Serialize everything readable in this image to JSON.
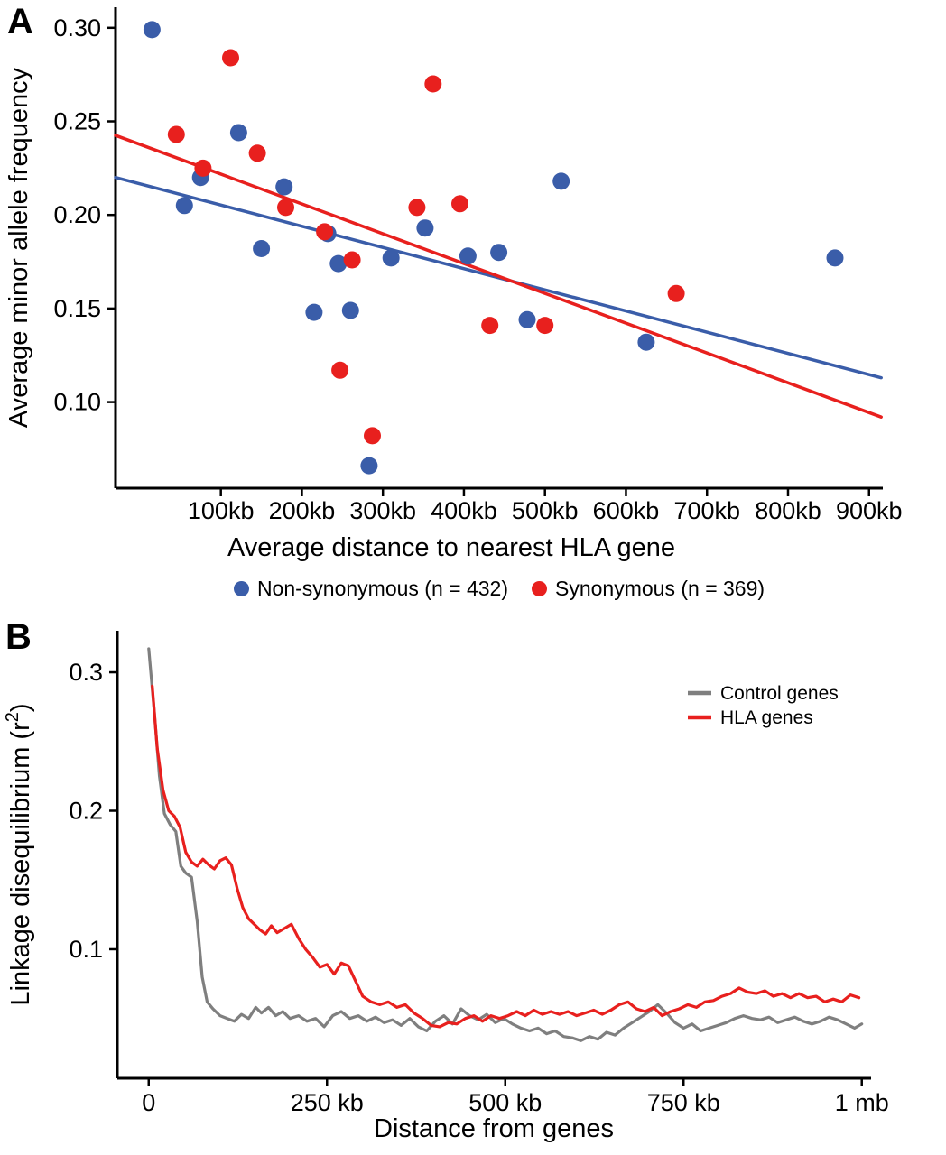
{
  "panels": {
    "a_label": "A",
    "b_label": "B"
  },
  "chart_data": [
    {
      "id": "panel-a",
      "type": "scatter",
      "title": "",
      "xlabel": "Average distance to nearest HLA gene",
      "ylabel": "Average minor allele frequency",
      "xlim": [
        -30,
        917
      ],
      "ylim": [
        0.054,
        0.311
      ],
      "grid": false,
      "x_ticks": [
        {
          "value": 100,
          "label": "100kb"
        },
        {
          "value": 200,
          "label": "200kb"
        },
        {
          "value": 300,
          "label": "300kb"
        },
        {
          "value": 400,
          "label": "400kb"
        },
        {
          "value": 500,
          "label": "500kb"
        },
        {
          "value": 600,
          "label": "600kb"
        },
        {
          "value": 700,
          "label": "700kb"
        },
        {
          "value": 800,
          "label": "800kb"
        },
        {
          "value": 900,
          "label": "900kb"
        }
      ],
      "y_ticks": [
        {
          "value": 0.1,
          "label": "0.10"
        },
        {
          "value": 0.15,
          "label": "0.15"
        },
        {
          "value": 0.2,
          "label": "0.20"
        },
        {
          "value": 0.25,
          "label": "0.25"
        },
        {
          "value": 0.3,
          "label": "0.30"
        }
      ],
      "series": [
        {
          "name": "Non-synonymous (n = 432)",
          "color": "#3A5DA9",
          "points": [
            [
              15,
              0.299
            ],
            [
              55,
              0.205
            ],
            [
              75,
              0.22
            ],
            [
              122,
              0.244
            ],
            [
              150,
              0.182
            ],
            [
              178,
              0.215
            ],
            [
              215,
              0.148
            ],
            [
              232,
              0.19
            ],
            [
              245,
              0.174
            ],
            [
              260,
              0.149
            ],
            [
              283,
              0.066
            ],
            [
              310,
              0.177
            ],
            [
              352,
              0.193
            ],
            [
              405,
              0.178
            ],
            [
              443,
              0.18
            ],
            [
              478,
              0.144
            ],
            [
              520,
              0.218
            ],
            [
              625,
              0.132
            ],
            [
              858,
              0.177
            ]
          ]
        },
        {
          "name": "Synonymous (n = 369)",
          "color": "#E8201E",
          "points": [
            [
              45,
              0.243
            ],
            [
              78,
              0.225
            ],
            [
              112,
              0.284
            ],
            [
              145,
              0.233
            ],
            [
              180,
              0.204
            ],
            [
              228,
              0.191
            ],
            [
              247,
              0.117
            ],
            [
              262,
              0.176
            ],
            [
              287,
              0.082
            ],
            [
              342,
              0.204
            ],
            [
              362,
              0.27
            ],
            [
              395,
              0.206
            ],
            [
              432,
              0.141
            ],
            [
              500,
              0.141
            ],
            [
              662,
              0.158
            ]
          ]
        }
      ],
      "trendlines": [
        {
          "name": "non-synonymous-fit",
          "color": "#3A5DA9",
          "x1": -30,
          "y1": 0.22,
          "x2": 915,
          "y2": 0.113
        },
        {
          "name": "synonymous-fit",
          "color": "#E8201E",
          "x1": -30,
          "y1": 0.2425,
          "x2": 915,
          "y2": 0.092
        }
      ],
      "legend": {
        "position": "bottom-center",
        "items": [
          {
            "label": "Non-synonymous (n = 432)",
            "color": "#3A5DA9"
          },
          {
            "label": "Synonymous (n = 369)",
            "color": "#E8201E"
          }
        ]
      }
    },
    {
      "id": "panel-b",
      "type": "line",
      "title": "",
      "xlabel": "Distance from genes",
      "ylabel_pre": "Linkage disequilibrium (r",
      "ylabel_sup": "2",
      "ylabel_post": ")",
      "xlim": [
        -44,
        1013
      ],
      "ylim": [
        0.0068,
        0.33
      ],
      "grid": false,
      "x_ticks": [
        {
          "value": 0,
          "label": "0"
        },
        {
          "value": 250,
          "label": "250 kb"
        },
        {
          "value": 500,
          "label": "500 kb"
        },
        {
          "value": 750,
          "label": "750 kb"
        },
        {
          "value": 1000,
          "label": "1 mb"
        }
      ],
      "y_ticks": [
        {
          "value": 0.1,
          "label": "0.1"
        },
        {
          "value": 0.2,
          "label": "0.2"
        },
        {
          "value": 0.3,
          "label": "0.3"
        }
      ],
      "series": [
        {
          "name": "Control genes",
          "color": "#7F7F7F",
          "points": [
            [
              0,
              0.317
            ],
            [
              8,
              0.27
            ],
            [
              15,
              0.225
            ],
            [
              22,
              0.198
            ],
            [
              30,
              0.19
            ],
            [
              38,
              0.185
            ],
            [
              45,
              0.16
            ],
            [
              52,
              0.155
            ],
            [
              60,
              0.152
            ],
            [
              68,
              0.12
            ],
            [
              75,
              0.08
            ],
            [
              82,
              0.062
            ],
            [
              90,
              0.057
            ],
            [
              100,
              0.052
            ],
            [
              110,
              0.05
            ],
            [
              120,
              0.048
            ],
            [
              130,
              0.053
            ],
            [
              140,
              0.05
            ],
            [
              150,
              0.058
            ],
            [
              158,
              0.054
            ],
            [
              168,
              0.058
            ],
            [
              178,
              0.052
            ],
            [
              188,
              0.055
            ],
            [
              198,
              0.05
            ],
            [
              210,
              0.052
            ],
            [
              222,
              0.048
            ],
            [
              234,
              0.05
            ],
            [
              246,
              0.044
            ],
            [
              258,
              0.052
            ],
            [
              270,
              0.055
            ],
            [
              282,
              0.05
            ],
            [
              294,
              0.052
            ],
            [
              306,
              0.048
            ],
            [
              318,
              0.051
            ],
            [
              330,
              0.047
            ],
            [
              342,
              0.049
            ],
            [
              354,
              0.045
            ],
            [
              366,
              0.05
            ],
            [
              378,
              0.044
            ],
            [
              390,
              0.041
            ],
            [
              402,
              0.048
            ],
            [
              414,
              0.052
            ],
            [
              426,
              0.046
            ],
            [
              438,
              0.057
            ],
            [
              450,
              0.052
            ],
            [
              462,
              0.049
            ],
            [
              474,
              0.053
            ],
            [
              486,
              0.047
            ],
            [
              498,
              0.05
            ],
            [
              510,
              0.046
            ],
            [
              522,
              0.043
            ],
            [
              534,
              0.041
            ],
            [
              546,
              0.043
            ],
            [
              558,
              0.039
            ],
            [
              570,
              0.041
            ],
            [
              582,
              0.037
            ],
            [
              594,
              0.036
            ],
            [
              606,
              0.034
            ],
            [
              618,
              0.037
            ],
            [
              630,
              0.035
            ],
            [
              642,
              0.04
            ],
            [
              654,
              0.038
            ],
            [
              666,
              0.043
            ],
            [
              678,
              0.047
            ],
            [
              690,
              0.051
            ],
            [
              702,
              0.055
            ],
            [
              714,
              0.06
            ],
            [
              726,
              0.054
            ],
            [
              738,
              0.047
            ],
            [
              750,
              0.043
            ],
            [
              762,
              0.046
            ],
            [
              774,
              0.041
            ],
            [
              786,
              0.043
            ],
            [
              798,
              0.045
            ],
            [
              810,
              0.047
            ],
            [
              822,
              0.05
            ],
            [
              834,
              0.052
            ],
            [
              846,
              0.05
            ],
            [
              858,
              0.049
            ],
            [
              870,
              0.051
            ],
            [
              882,
              0.047
            ],
            [
              894,
              0.049
            ],
            [
              906,
              0.051
            ],
            [
              918,
              0.048
            ],
            [
              930,
              0.046
            ],
            [
              942,
              0.048
            ],
            [
              954,
              0.051
            ],
            [
              966,
              0.049
            ],
            [
              978,
              0.046
            ],
            [
              990,
              0.043
            ],
            [
              1000,
              0.046
            ]
          ]
        },
        {
          "name": "HLA genes",
          "color": "#E8201E",
          "points": [
            [
              5,
              0.29
            ],
            [
              12,
              0.245
            ],
            [
              20,
              0.215
            ],
            [
              28,
              0.2
            ],
            [
              36,
              0.196
            ],
            [
              44,
              0.188
            ],
            [
              52,
              0.17
            ],
            [
              60,
              0.163
            ],
            [
              68,
              0.16
            ],
            [
              76,
              0.165
            ],
            [
              84,
              0.161
            ],
            [
              92,
              0.158
            ],
            [
              100,
              0.164
            ],
            [
              108,
              0.166
            ],
            [
              116,
              0.161
            ],
            [
              124,
              0.144
            ],
            [
              132,
              0.13
            ],
            [
              140,
              0.122
            ],
            [
              148,
              0.118
            ],
            [
              156,
              0.114
            ],
            [
              164,
              0.111
            ],
            [
              172,
              0.117
            ],
            [
              180,
              0.112
            ],
            [
              190,
              0.115
            ],
            [
              200,
              0.118
            ],
            [
              210,
              0.108
            ],
            [
              220,
              0.1
            ],
            [
              230,
              0.094
            ],
            [
              240,
              0.087
            ],
            [
              250,
              0.089
            ],
            [
              260,
              0.082
            ],
            [
              270,
              0.09
            ],
            [
              280,
              0.088
            ],
            [
              290,
              0.077
            ],
            [
              300,
              0.066
            ],
            [
              312,
              0.062
            ],
            [
              324,
              0.06
            ],
            [
              336,
              0.062
            ],
            [
              348,
              0.058
            ],
            [
              360,
              0.06
            ],
            [
              372,
              0.054
            ],
            [
              384,
              0.05
            ],
            [
              396,
              0.045
            ],
            [
              408,
              0.044
            ],
            [
              420,
              0.047
            ],
            [
              432,
              0.046
            ],
            [
              444,
              0.05
            ],
            [
              456,
              0.052
            ],
            [
              468,
              0.048
            ],
            [
              480,
              0.052
            ],
            [
              492,
              0.05
            ],
            [
              504,
              0.052
            ],
            [
              516,
              0.055
            ],
            [
              528,
              0.052
            ],
            [
              540,
              0.056
            ],
            [
              552,
              0.053
            ],
            [
              564,
              0.055
            ],
            [
              576,
              0.053
            ],
            [
              588,
              0.055
            ],
            [
              600,
              0.052
            ],
            [
              612,
              0.054
            ],
            [
              624,
              0.056
            ],
            [
              636,
              0.053
            ],
            [
              648,
              0.056
            ],
            [
              660,
              0.06
            ],
            [
              672,
              0.062
            ],
            [
              684,
              0.057
            ],
            [
              696,
              0.055
            ],
            [
              708,
              0.058
            ],
            [
              720,
              0.052
            ],
            [
              732,
              0.055
            ],
            [
              744,
              0.057
            ],
            [
              756,
              0.06
            ],
            [
              768,
              0.058
            ],
            [
              780,
              0.062
            ],
            [
              792,
              0.063
            ],
            [
              804,
              0.066
            ],
            [
              816,
              0.068
            ],
            [
              828,
              0.072
            ],
            [
              840,
              0.069
            ],
            [
              852,
              0.068
            ],
            [
              864,
              0.07
            ],
            [
              876,
              0.066
            ],
            [
              888,
              0.068
            ],
            [
              900,
              0.065
            ],
            [
              912,
              0.068
            ],
            [
              924,
              0.065
            ],
            [
              936,
              0.066
            ],
            [
              948,
              0.062
            ],
            [
              960,
              0.064
            ],
            [
              972,
              0.062
            ],
            [
              984,
              0.067
            ],
            [
              996,
              0.065
            ]
          ]
        }
      ],
      "legend": {
        "position": "top-right",
        "items": [
          {
            "label": "Control genes",
            "color": "#7F7F7F"
          },
          {
            "label": "HLA genes",
            "color": "#E8201E"
          }
        ]
      }
    }
  ]
}
